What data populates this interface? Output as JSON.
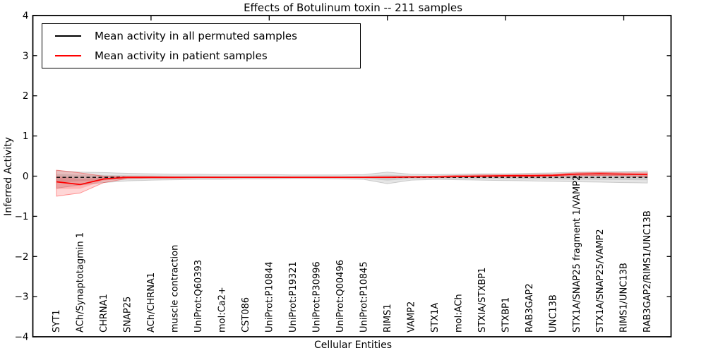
{
  "title": "Effects of Botulinum toxin -- 211 samples",
  "axes": {
    "xlabel": "Cellular Entities",
    "ylabel": "Inferred Activity",
    "ytick_labels": [
      "4",
      "3",
      "2",
      "1",
      "0",
      "−1",
      "−2",
      "−3",
      "−4"
    ],
    "ytick_values": [
      4,
      3,
      2,
      1,
      0,
      -1,
      -2,
      -3,
      -4
    ],
    "ylim": [
      -4,
      4
    ]
  },
  "legend": {
    "entries": [
      {
        "label": "Mean activity in all permuted samples",
        "color": "#000000",
        "line_style": "dashed"
      },
      {
        "label": "Mean activity in patient samples",
        "color": "#ff0000",
        "line_style": "solid"
      }
    ]
  },
  "chart_data": {
    "type": "line",
    "title": "Effects of Botulinum toxin -- 211 samples",
    "xlabel": "Cellular Entities",
    "ylabel": "Inferred Activity",
    "ylim": [
      -4,
      4
    ],
    "grid": false,
    "legend_position": "upper left",
    "top_axis_tick_category_numbers": [
      5,
      10,
      15,
      20,
      25
    ],
    "categories": [
      "SYT1",
      "ACh/Synaptotagmin 1",
      "CHRNA1",
      "SNAP25",
      "ACh/CHRNA1",
      "muscle contraction",
      "UniProt:Q60393",
      "mol:Ca2+",
      "CST086",
      "UniProt:P10844",
      "UniProt:P19321",
      "UniProt:P30996",
      "UniProt:Q00496",
      "UniProt:P10845",
      "RIMS1",
      "VAMP2",
      "STX1A",
      "mol:ACh",
      "STXIA/STXBP1",
      "STXBP1",
      "RAB3GAP2",
      "UNC13B",
      "STX1A/SNAP25 fragment 1/VAMP2",
      "STX1A/SNAP25/VAMP2",
      "RIMS1/UNC13B",
      "RAB3GAP2/RIMS1/UNC13B"
    ],
    "series": [
      {
        "name": "Mean activity in all permuted samples",
        "color": "#000000",
        "line_style": "dashed",
        "values": [
          -0.03,
          -0.03,
          -0.03,
          -0.03,
          -0.03,
          -0.03,
          -0.03,
          -0.03,
          -0.03,
          -0.03,
          -0.03,
          -0.03,
          -0.03,
          -0.03,
          -0.03,
          -0.03,
          -0.03,
          -0.03,
          -0.03,
          -0.03,
          -0.03,
          -0.03,
          -0.03,
          -0.03,
          -0.03,
          -0.03
        ],
        "band_upper": [
          0.14,
          0.1,
          0.09,
          0.07,
          0.06,
          0.05,
          0.05,
          0.04,
          0.04,
          0.04,
          0.03,
          0.03,
          0.03,
          0.04,
          0.1,
          0.05,
          0.04,
          0.05,
          0.06,
          0.06,
          0.07,
          0.08,
          0.1,
          0.11,
          0.12,
          0.13
        ],
        "band_lower": [
          -0.3,
          -0.22,
          -0.16,
          -0.12,
          -0.1,
          -0.09,
          -0.08,
          -0.08,
          -0.07,
          -0.07,
          -0.06,
          -0.06,
          -0.07,
          -0.08,
          -0.19,
          -0.1,
          -0.08,
          -0.09,
          -0.1,
          -0.11,
          -0.12,
          -0.13,
          -0.14,
          -0.15,
          -0.16,
          -0.17
        ]
      },
      {
        "name": "Mean activity in patient samples",
        "color": "#ff0000",
        "line_style": "solid",
        "values": [
          -0.14,
          -0.21,
          -0.07,
          -0.03,
          -0.03,
          -0.03,
          -0.03,
          -0.03,
          -0.03,
          -0.03,
          -0.03,
          -0.03,
          -0.03,
          -0.03,
          -0.03,
          -0.02,
          -0.02,
          -0.01,
          0.0,
          0.01,
          0.01,
          0.02,
          0.05,
          0.06,
          0.05,
          0.04
        ],
        "band_upper": [
          0.15,
          0.08,
          0.0,
          -0.01,
          -0.01,
          -0.02,
          -0.02,
          -0.02,
          -0.02,
          -0.02,
          -0.02,
          -0.02,
          -0.02,
          -0.02,
          -0.01,
          -0.01,
          0.0,
          0.02,
          0.03,
          0.03,
          0.04,
          0.05,
          0.08,
          0.09,
          0.08,
          0.08
        ],
        "band_lower": [
          -0.5,
          -0.42,
          -0.16,
          -0.06,
          -0.05,
          -0.05,
          -0.04,
          -0.04,
          -0.04,
          -0.04,
          -0.04,
          -0.04,
          -0.04,
          -0.04,
          -0.04,
          -0.03,
          -0.03,
          -0.02,
          -0.01,
          -0.01,
          -0.01,
          0.0,
          0.01,
          0.02,
          0.01,
          -0.01
        ]
      }
    ]
  }
}
